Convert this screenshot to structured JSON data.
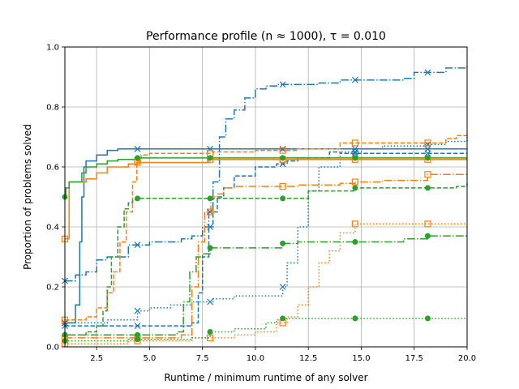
{
  "chart_data": {
    "type": "line",
    "title": "Performance profile (n ≈ 1000), τ = 0.010",
    "xlabel": "Runtime / minimum runtime of any solver",
    "ylabel": "Proportion of problems solved",
    "xlim": [
      1.0,
      20.0
    ],
    "ylim": [
      0.0,
      1.0
    ],
    "xticks": [
      2.5,
      5.0,
      7.5,
      10.0,
      12.5,
      15.0,
      17.5,
      20.0
    ],
    "xtick_labels": [
      "2.5",
      "5.0",
      "7.5",
      "10.0",
      "12.5",
      "15.0",
      "17.5",
      "20.0"
    ],
    "yticks": [
      0.0,
      0.2,
      0.4,
      0.6,
      0.8,
      1.0
    ],
    "ytick_labels": [
      "0.0",
      "0.2",
      "0.4",
      "0.6",
      "0.8",
      "1.0"
    ],
    "grid": true,
    "marker_x": [
      1.0,
      4.43,
      7.86,
      11.29,
      14.71,
      18.14
    ],
    "colors": {
      "blue": "#1f77b4",
      "orange": "#ff7f0e",
      "green": "#2ca02c"
    },
    "series": [
      {
        "color": "blue",
        "linestyle": "solid",
        "marker": "x",
        "x": [
          1.0,
          1.5,
          1.7,
          1.8,
          1.9,
          2.0,
          2.5,
          3.0,
          3.5,
          4.0,
          20.0
        ],
        "y": [
          0.08,
          0.14,
          0.35,
          0.5,
          0.6,
          0.62,
          0.64,
          0.655,
          0.66,
          0.66,
          0.66
        ]
      },
      {
        "color": "blue",
        "linestyle": "dashdot",
        "marker": "x",
        "x": [
          1.0,
          1.5,
          2.0,
          2.5,
          3.0,
          4.0,
          5.0,
          6.5,
          7.0,
          7.5,
          7.8,
          8.0,
          8.3,
          8.6,
          9.0,
          9.5,
          10.0,
          10.5,
          11.0,
          13.0,
          14.0,
          17.0,
          17.5,
          19.0,
          20.0
        ],
        "y": [
          0.22,
          0.24,
          0.25,
          0.29,
          0.3,
          0.34,
          0.35,
          0.36,
          0.37,
          0.4,
          0.45,
          0.55,
          0.7,
          0.76,
          0.79,
          0.83,
          0.86,
          0.87,
          0.875,
          0.88,
          0.89,
          0.895,
          0.915,
          0.93,
          0.935
        ]
      },
      {
        "color": "blue",
        "linestyle": "dashed",
        "marker": "x",
        "x": [
          1.0,
          4.0,
          7.0,
          7.3,
          7.5,
          7.8,
          8.0,
          8.2,
          8.5,
          9.0,
          10.0,
          11.0,
          11.5,
          12.0,
          13.0,
          13.5,
          14.0,
          17.0,
          20.0
        ],
        "y": [
          0.07,
          0.07,
          0.08,
          0.18,
          0.3,
          0.4,
          0.45,
          0.5,
          0.53,
          0.57,
          0.6,
          0.61,
          0.62,
          0.63,
          0.63,
          0.65,
          0.645,
          0.645,
          0.645
        ]
      },
      {
        "color": "blue",
        "linestyle": "dotted",
        "marker": "x",
        "x": [
          1.0,
          3.0,
          4.43,
          5.0,
          6.0,
          7.0,
          8.0,
          9.0,
          10.0,
          11.29,
          11.5,
          12.0,
          12.5,
          13.0,
          14.0,
          15.0,
          16.0,
          18.0,
          19.0,
          20.0
        ],
        "y": [
          0.08,
          0.09,
          0.12,
          0.13,
          0.14,
          0.15,
          0.16,
          0.17,
          0.17,
          0.2,
          0.28,
          0.4,
          0.52,
          0.6,
          0.65,
          0.66,
          0.67,
          0.675,
          0.685,
          0.7
        ]
      },
      {
        "color": "orange",
        "linestyle": "solid",
        "marker": "square",
        "x": [
          1.0,
          1.2,
          2.0,
          2.5,
          3.0,
          4.0,
          4.4,
          7.5,
          7.8,
          20.0
        ],
        "y": [
          0.36,
          0.55,
          0.56,
          0.58,
          0.6,
          0.61,
          0.615,
          0.615,
          0.625,
          0.625
        ]
      },
      {
        "color": "orange",
        "linestyle": "dashed",
        "marker": "square",
        "x": [
          1.0,
          2.0,
          2.5,
          3.0,
          3.3,
          3.6,
          3.9,
          4.2,
          4.4,
          4.6,
          5.0,
          7.0,
          8.0,
          10.0,
          12.0,
          13.0,
          14.0,
          17.0,
          19.0,
          19.5,
          20.0
        ],
        "y": [
          0.09,
          0.1,
          0.13,
          0.18,
          0.25,
          0.35,
          0.45,
          0.55,
          0.62,
          0.64,
          0.645,
          0.645,
          0.65,
          0.655,
          0.66,
          0.66,
          0.68,
          0.68,
          0.695,
          0.705,
          0.715
        ]
      },
      {
        "color": "orange",
        "linestyle": "dashdot",
        "marker": "square",
        "x": [
          1.0,
          4.0,
          6.5,
          7.0,
          7.3,
          7.6,
          7.9,
          8.2,
          8.5,
          9.0,
          10.5,
          12.0,
          14.0,
          14.71,
          16.0,
          18.14,
          19.0,
          20.0
        ],
        "y": [
          0.03,
          0.03,
          0.04,
          0.2,
          0.35,
          0.45,
          0.5,
          0.51,
          0.53,
          0.535,
          0.535,
          0.54,
          0.545,
          0.55,
          0.555,
          0.575,
          0.575,
          0.575
        ]
      },
      {
        "color": "orange",
        "linestyle": "dotted",
        "marker": "square",
        "x": [
          1.0,
          4.0,
          7.0,
          9.0,
          10.0,
          11.0,
          11.5,
          12.0,
          12.5,
          13.0,
          13.5,
          14.0,
          14.71,
          16.0,
          20.0
        ],
        "y": [
          0.01,
          0.02,
          0.03,
          0.04,
          0.05,
          0.08,
          0.1,
          0.14,
          0.2,
          0.28,
          0.32,
          0.38,
          0.41,
          0.41,
          0.41
        ]
      },
      {
        "color": "green",
        "linestyle": "solid",
        "marker": "circle",
        "x": [
          1.0,
          1.05,
          1.2,
          1.8,
          2.0,
          2.5,
          3.0,
          3.5,
          4.4,
          8.0,
          20.0
        ],
        "y": [
          0.5,
          0.53,
          0.55,
          0.58,
          0.6,
          0.61,
          0.62,
          0.625,
          0.63,
          0.63,
          0.63
        ]
      },
      {
        "color": "green",
        "linestyle": "dashed",
        "marker": "circle",
        "x": [
          1.0,
          2.0,
          2.5,
          2.8,
          3.0,
          3.2,
          3.5,
          3.8,
          4.0,
          4.2,
          4.43,
          7.0,
          11.29,
          12.5,
          14.71,
          18.14,
          19.5,
          20.0
        ],
        "y": [
          0.04,
          0.05,
          0.07,
          0.12,
          0.2,
          0.3,
          0.4,
          0.46,
          0.48,
          0.49,
          0.495,
          0.495,
          0.495,
          0.52,
          0.53,
          0.53,
          0.535,
          0.545
        ]
      },
      {
        "color": "green",
        "linestyle": "dashdot",
        "marker": "circle",
        "x": [
          1.0,
          6.3,
          6.6,
          6.9,
          7.2,
          7.5,
          7.86,
          9.0,
          11.29,
          12.0,
          14.71,
          17.0,
          18.14,
          20.0
        ],
        "y": [
          0.04,
          0.05,
          0.15,
          0.25,
          0.3,
          0.31,
          0.33,
          0.33,
          0.345,
          0.35,
          0.35,
          0.36,
          0.37,
          0.37
        ]
      },
      {
        "color": "green",
        "linestyle": "dotted",
        "marker": "circle",
        "x": [
          1.0,
          4.0,
          7.0,
          7.86,
          9.0,
          10.5,
          11.0,
          11.29,
          14.71,
          18.14,
          20.0
        ],
        "y": [
          0.02,
          0.025,
          0.03,
          0.05,
          0.06,
          0.08,
          0.09,
          0.095,
          0.095,
          0.095,
          0.095
        ]
      }
    ]
  }
}
